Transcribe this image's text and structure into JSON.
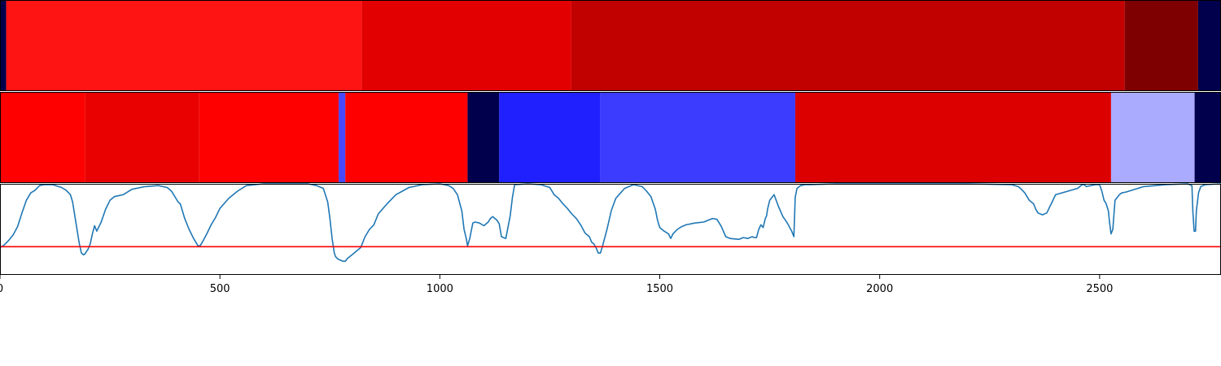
{
  "chart_data": [
    {
      "type": "heatmap",
      "title": "",
      "xlim": [
        0,
        2776
      ],
      "segments": [
        {
          "start": 0,
          "end": 14,
          "color": "#00004c"
        },
        {
          "start": 14,
          "end": 822,
          "color": "#ff1414"
        },
        {
          "start": 822,
          "end": 1299,
          "color": "#e30000"
        },
        {
          "start": 1299,
          "end": 2557,
          "color": "#c10000"
        },
        {
          "start": 2557,
          "end": 2724,
          "color": "#7f0000"
        },
        {
          "start": 2724,
          "end": 2776,
          "color": "#00004c"
        }
      ]
    },
    {
      "type": "heatmap",
      "title": "",
      "xlim": [
        0,
        2776
      ],
      "segments": [
        {
          "start": 0,
          "end": 193,
          "color": "#ff0000"
        },
        {
          "start": 193,
          "end": 453,
          "color": "#e90000"
        },
        {
          "start": 453,
          "end": 770,
          "color": "#ff0000"
        },
        {
          "start": 770,
          "end": 785,
          "color": "#4848ff"
        },
        {
          "start": 785,
          "end": 1063,
          "color": "#ff0000"
        },
        {
          "start": 1063,
          "end": 1135,
          "color": "#00004c"
        },
        {
          "start": 1135,
          "end": 1364,
          "color": "#2020ff"
        },
        {
          "start": 1364,
          "end": 1808,
          "color": "#3c3cff"
        },
        {
          "start": 1808,
          "end": 2526,
          "color": "#dd0000"
        },
        {
          "start": 2526,
          "end": 2716,
          "color": "#aaaaff"
        },
        {
          "start": 2716,
          "end": 2776,
          "color": "#00004c"
        }
      ]
    },
    {
      "type": "line",
      "title": "",
      "xlabel": "",
      "ylabel": "",
      "xlim": [
        0,
        2776
      ],
      "ylim": [
        0,
        1
      ],
      "xticks": [
        0,
        500,
        1000,
        1500,
        2000,
        2500
      ],
      "xtick_labels": [
        "0",
        "500",
        "1000",
        "1500",
        "2000",
        "2500"
      ],
      "threshold": 0.31,
      "threshold_color": "#ff0000",
      "line_color": "#1f77b4",
      "series": [
        {
          "x": [
            0,
            10,
            20,
            30,
            40,
            50,
            60,
            70,
            80,
            90,
            100,
            120,
            140,
            150,
            160,
            165,
            170,
            175,
            180,
            185,
            190,
            193,
            200,
            205,
            210,
            215,
            220,
            230,
            240,
            250,
            260,
            280,
            300,
            330,
            360,
            380,
            390,
            395,
            400,
            405,
            410,
            420,
            430,
            440,
            450,
            455,
            460,
            470,
            480,
            490,
            500,
            520,
            540,
            560,
            600,
            650,
            700,
            720,
            735,
            745,
            750,
            755,
            760,
            763,
            767,
            770,
            775,
            780,
            785,
            790,
            800,
            820,
            830,
            840,
            850,
            860,
            880,
            900,
            930,
            960,
            1000,
            1020,
            1030,
            1040,
            1050,
            1055,
            1060,
            1063,
            1068,
            1072,
            1075,
            1080,
            1090,
            1100,
            1110,
            1115,
            1120,
            1130,
            1135,
            1140,
            1150,
            1160,
            1165,
            1170,
            1200,
            1230,
            1250,
            1260,
            1270,
            1280,
            1290,
            1300,
            1310,
            1320,
            1330,
            1340,
            1345,
            1350,
            1355,
            1360,
            1365,
            1370,
            1380,
            1390,
            1400,
            1420,
            1440,
            1460,
            1470,
            1480,
            1490,
            1495,
            1500,
            1510,
            1520,
            1525,
            1530,
            1540,
            1550,
            1560,
            1580,
            1600,
            1610,
            1620,
            1630,
            1640,
            1650,
            1660,
            1680,
            1690,
            1700,
            1710,
            1715,
            1720,
            1725,
            1730,
            1735,
            1740,
            1743,
            1745,
            1750,
            1760,
            1770,
            1780,
            1790,
            1800,
            1805,
            1808,
            1812,
            1820,
            1830,
            1840,
            1900,
            2000,
            2100,
            2200,
            2300,
            2315,
            2320,
            2330,
            2340,
            2350,
            2355,
            2360,
            2370,
            2380,
            2390,
            2400,
            2450,
            2460,
            2465,
            2470,
            2490,
            2500,
            2505,
            2510,
            2515,
            2520,
            2522,
            2526,
            2530,
            2535,
            2540,
            2545,
            2550,
            2560,
            2600,
            2650,
            2700,
            2710,
            2712,
            2715,
            2718,
            2720,
            2725,
            2730,
            2740,
            2776
          ],
          "y": [
            0.3,
            0.33,
            0.38,
            0.44,
            0.53,
            0.68,
            0.82,
            0.9,
            0.93,
            0.98,
            0.99,
            0.99,
            0.96,
            0.93,
            0.88,
            0.8,
            0.65,
            0.5,
            0.35,
            0.24,
            0.22,
            0.23,
            0.28,
            0.34,
            0.45,
            0.54,
            0.48,
            0.58,
            0.72,
            0.82,
            0.86,
            0.88,
            0.94,
            0.97,
            0.98,
            0.96,
            0.92,
            0.88,
            0.84,
            0.8,
            0.78,
            0.62,
            0.5,
            0.4,
            0.32,
            0.32,
            0.36,
            0.45,
            0.55,
            0.63,
            0.73,
            0.84,
            0.92,
            0.98,
            1.0,
            1.0,
            1.0,
            0.98,
            0.95,
            0.8,
            0.62,
            0.4,
            0.24,
            0.2,
            0.18,
            0.17,
            0.16,
            0.15,
            0.15,
            0.18,
            0.22,
            0.3,
            0.42,
            0.5,
            0.55,
            0.67,
            0.78,
            0.88,
            0.96,
            0.99,
            1.0,
            0.98,
            0.95,
            0.88,
            0.7,
            0.5,
            0.4,
            0.32,
            0.4,
            0.5,
            0.57,
            0.58,
            0.57,
            0.54,
            0.58,
            0.62,
            0.64,
            0.6,
            0.56,
            0.42,
            0.4,
            0.65,
            0.85,
            0.99,
            1.0,
            0.99,
            0.96,
            0.88,
            0.84,
            0.78,
            0.73,
            0.67,
            0.62,
            0.55,
            0.46,
            0.42,
            0.36,
            0.34,
            0.3,
            0.24,
            0.24,
            0.32,
            0.5,
            0.71,
            0.84,
            0.95,
            0.99,
            0.97,
            0.92,
            0.86,
            0.72,
            0.6,
            0.52,
            0.48,
            0.45,
            0.4,
            0.45,
            0.5,
            0.53,
            0.55,
            0.57,
            0.58,
            0.6,
            0.62,
            0.61,
            0.53,
            0.42,
            0.4,
            0.39,
            0.41,
            0.4,
            0.42,
            0.41,
            0.41,
            0.5,
            0.55,
            0.52,
            0.62,
            0.65,
            0.72,
            0.82,
            0.88,
            0.75,
            0.64,
            0.57,
            0.48,
            0.42,
            0.85,
            0.95,
            0.98,
            0.99,
            0.99,
            1.0,
            1.0,
            1.0,
            1.0,
            0.99,
            0.97,
            0.95,
            0.9,
            0.82,
            0.78,
            0.72,
            0.68,
            0.66,
            0.68,
            0.78,
            0.88,
            0.95,
            0.99,
            0.99,
            0.97,
            0.99,
            0.99,
            0.92,
            0.82,
            0.78,
            0.7,
            0.6,
            0.45,
            0.5,
            0.82,
            0.85,
            0.88,
            0.9,
            0.91,
            0.97,
            0.99,
            1.0,
            0.98,
            0.7,
            0.48,
            0.48,
            0.7,
            0.9,
            0.97,
            0.99,
            1.0
          ]
        }
      ]
    }
  ]
}
